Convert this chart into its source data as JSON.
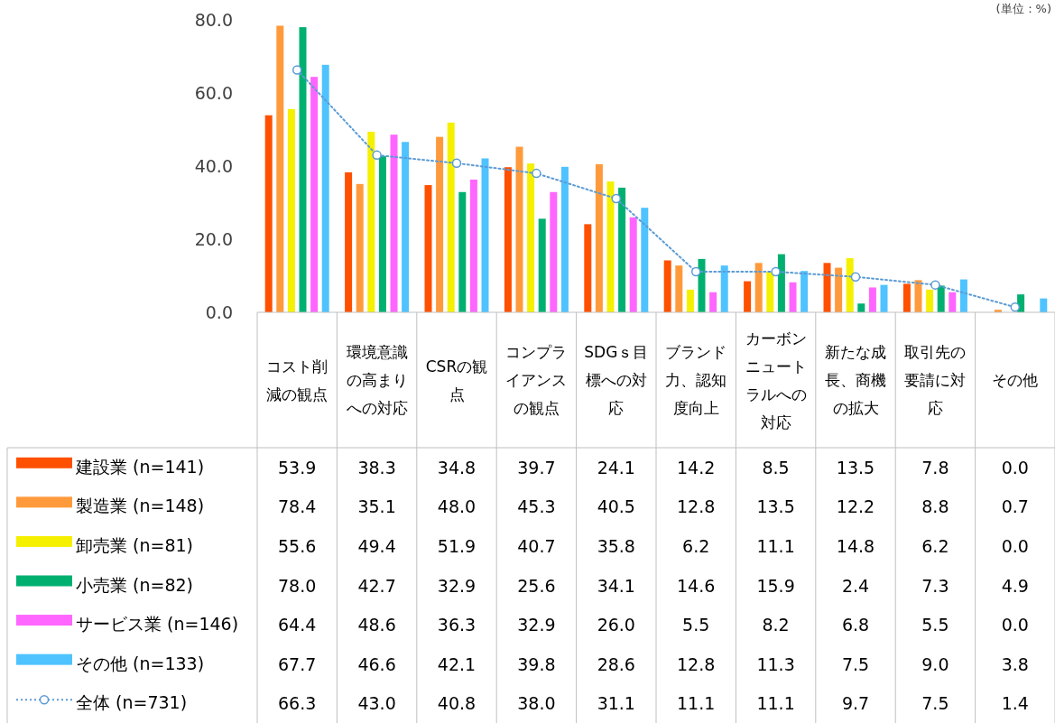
{
  "chart_data": {
    "type": "bar",
    "annotations": [
      "(単位：%)"
    ],
    "categories": [
      "コスト削減の観点",
      "環境意識の高まりへの対応",
      "CSRの観点",
      "コンプライアンスの観点",
      "SDGｓ目標への対応",
      "ブランド力、認知度向上",
      "カーボンニュートラルへの対応",
      "新たな成長、商機の拡大",
      "取引先の要請に対応",
      "その他"
    ],
    "ylim": [
      0,
      80
    ],
    "yticks": [
      {
        "value": 0,
        "label": "0.0"
      },
      {
        "value": 20,
        "label": "20.0"
      },
      {
        "value": 40,
        "label": "40.0"
      },
      {
        "value": 60,
        "label": "60.0"
      },
      {
        "value": 80,
        "label": "80.0"
      }
    ],
    "legend": "left",
    "series": [
      {
        "name": "建設業 (n=141)",
        "color": "#ff5000",
        "values": [
          53.9,
          38.3,
          34.8,
          39.7,
          24.1,
          14.2,
          8.5,
          13.5,
          7.8,
          0.0
        ],
        "value_labels": [
          "53.9",
          "38.3",
          "34.8",
          "39.7",
          "24.1",
          "14.2",
          "8.5",
          "13.5",
          "7.8",
          "0.0"
        ]
      },
      {
        "name": "製造業 (n=148)",
        "color": "#ff9a3c",
        "values": [
          78.4,
          35.1,
          48.0,
          45.3,
          40.5,
          12.8,
          13.5,
          12.2,
          8.8,
          0.7
        ],
        "value_labels": [
          "78.4",
          "35.1",
          "48.0",
          "45.3",
          "40.5",
          "12.8",
          "13.5",
          "12.2",
          "8.8",
          "0.7"
        ]
      },
      {
        "name": "卸売業 (n=81)",
        "color": "#f5f000",
        "values": [
          55.6,
          49.4,
          51.9,
          40.7,
          35.8,
          6.2,
          11.1,
          14.8,
          6.2,
          0.0
        ],
        "value_labels": [
          "55.6",
          "49.4",
          "51.9",
          "40.7",
          "35.8",
          "6.2",
          "11.1",
          "14.8",
          "6.2",
          "0.0"
        ]
      },
      {
        "name": "小売業 (n=82)",
        "color": "#00b070",
        "values": [
          78.0,
          42.7,
          32.9,
          25.6,
          34.1,
          14.6,
          15.9,
          2.4,
          7.3,
          4.9
        ],
        "value_labels": [
          "78.0",
          "42.7",
          "32.9",
          "25.6",
          "34.1",
          "14.6",
          "15.9",
          "2.4",
          "7.3",
          "4.9"
        ]
      },
      {
        "name": "サービス業 (n=146)",
        "color": "#ff66ff",
        "values": [
          64.4,
          48.6,
          36.3,
          32.9,
          26.0,
          5.5,
          8.2,
          6.8,
          5.5,
          0.0
        ],
        "value_labels": [
          "64.4",
          "48.6",
          "36.3",
          "32.9",
          "26.0",
          "5.5",
          "8.2",
          "6.8",
          "5.5",
          "0.0"
        ]
      },
      {
        "name": "その他 (n=133)",
        "color": "#4fc3ff",
        "values": [
          67.7,
          46.6,
          42.1,
          39.8,
          28.6,
          12.8,
          11.3,
          7.5,
          9.0,
          3.8
        ],
        "value_labels": [
          "67.7",
          "46.6",
          "42.1",
          "39.8",
          "28.6",
          "12.8",
          "11.3",
          "7.5",
          "9.0",
          "3.8"
        ]
      },
      {
        "name": "全体 (n=731)",
        "type": "line",
        "color": "#5b9bd5",
        "marker": "circle",
        "line_style": "dotted",
        "values": [
          66.3,
          43.0,
          40.8,
          38.0,
          31.1,
          11.1,
          11.1,
          9.7,
          7.5,
          1.4
        ],
        "value_labels": [
          "66.3",
          "43.0",
          "40.8",
          "38.0",
          "31.1",
          "11.1",
          "11.1",
          "9.7",
          "7.5",
          "1.4"
        ]
      }
    ]
  }
}
